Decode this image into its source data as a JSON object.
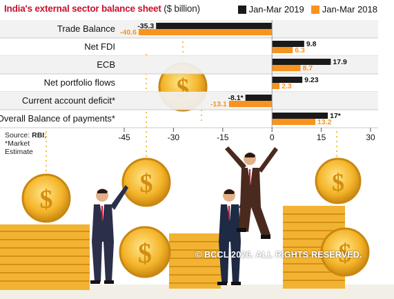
{
  "title": "India's external sector balance sheet",
  "title_unit": "($ billion)",
  "source_label": "Source:",
  "source_name": "RBI",
  "footnote_line1": "*Market",
  "footnote_line2": "Estimate",
  "watermark": "© BCCL 2026. ALL RIGHTS RESERVED.",
  "colors": {
    "series_2019": "#1a1a1a",
    "series_2018": "#f7931e",
    "title": "#c8102e",
    "row_band": "#f1f1f1",
    "coin": "#f5b82e"
  },
  "chart_data": {
    "type": "bar",
    "orientation": "horizontal",
    "categories": [
      "Trade Balance",
      "Net FDI",
      "ECB",
      "Net portfolio flows",
      "Current account deficit*",
      "Overall Balance of payments*"
    ],
    "series": [
      {
        "name": "Jan-Mar 2019",
        "values": [
          -35.3,
          9.8,
          17.9,
          9.23,
          -8.1,
          17
        ]
      },
      {
        "name": "Jan-Mar 2018",
        "values": [
          -40.6,
          6.3,
          8.7,
          2.3,
          -13.1,
          13.2
        ]
      }
    ],
    "value_labels": [
      [
        "-35.3",
        "9.8",
        "17.9",
        "9.23",
        "-8.1*",
        "17*"
      ],
      [
        "-40.6",
        "6.3",
        "8.7",
        "2.3",
        "-13.1",
        "13.2"
      ]
    ],
    "xlim": [
      -45,
      30
    ],
    "xticks": [
      "-45",
      "-30",
      "-15",
      "0",
      "15",
      "30"
    ],
    "grid": false,
    "legend_position": "top-right"
  }
}
